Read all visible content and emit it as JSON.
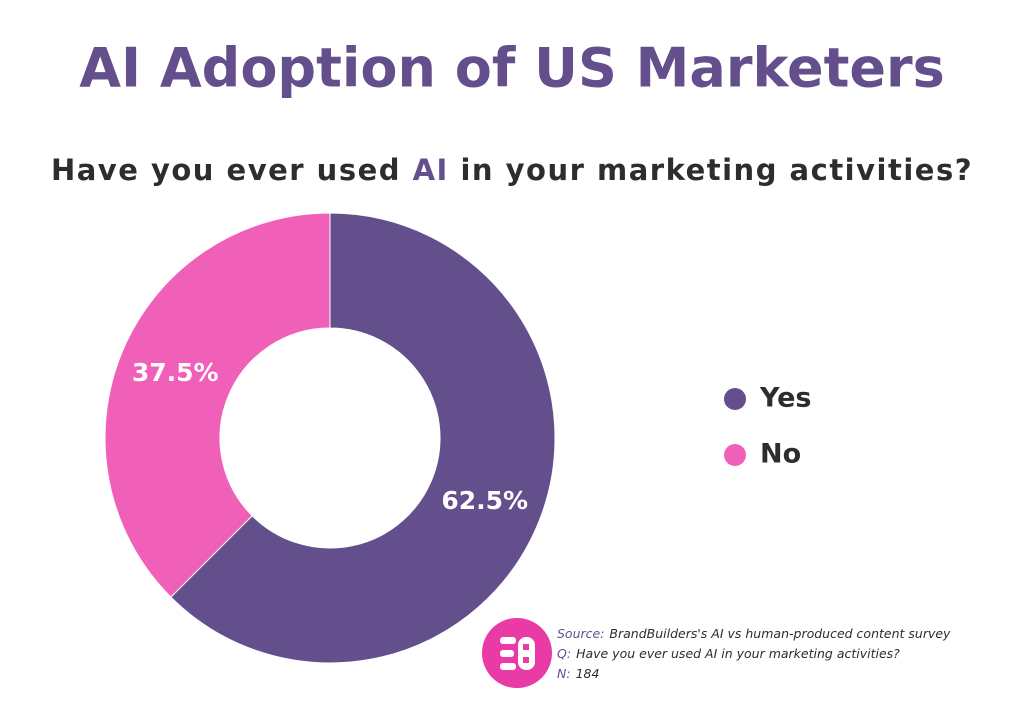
{
  "chart_data": {
    "type": "donut",
    "title": "AI Adoption of US Marketers",
    "subtitle_parts": [
      "Have you ever used ",
      "AI",
      " in your marketing activities?"
    ],
    "categories": [
      "Yes",
      "No"
    ],
    "values": [
      62.5,
      37.5
    ],
    "value_labels": [
      "62.5%",
      "37.5%"
    ],
    "colors": [
      "#634f8c",
      "#f060b8"
    ],
    "footnotes": [
      {
        "label": "Source:",
        "text": "BrandBuilders's AI vs human-produced content survey"
      },
      {
        "label": "Q:",
        "text": "Have you ever used AI in your marketing activities?"
      },
      {
        "label": "N:",
        "text": "184"
      }
    ]
  }
}
